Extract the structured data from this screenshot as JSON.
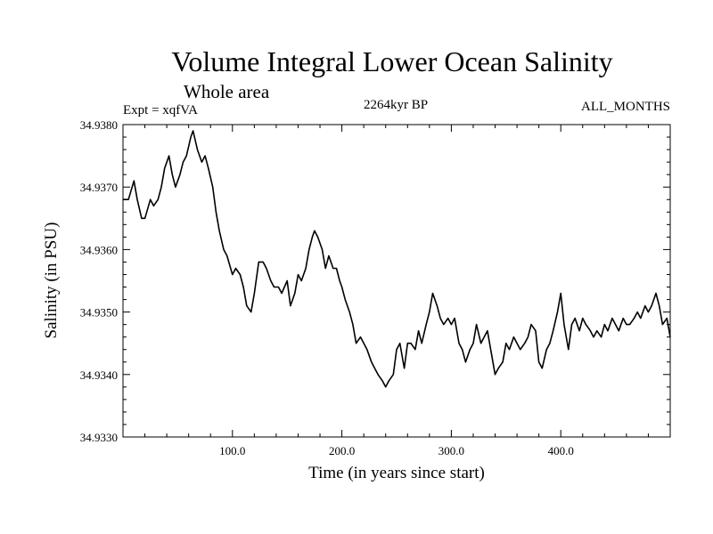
{
  "chart_data": {
    "type": "line",
    "title": "Volume Integral Lower Ocean Salinity",
    "subtitle": "Whole area",
    "experiment": "Expt = xqfVA",
    "period": "2264kyr BP",
    "months": "ALL_MONTHS",
    "xlabel": "Time (in years since start)",
    "ylabel": "Salinity (in PSU)",
    "xlim": [
      0,
      500
    ],
    "ylim": [
      34.933,
      34.938
    ],
    "x_ticks": [
      100,
      200,
      300,
      400
    ],
    "x_tick_labels": [
      "100.0",
      "200.0",
      "300.0",
      "400.0"
    ],
    "y_ticks": [
      34.933,
      34.934,
      34.935,
      34.936,
      34.937,
      34.938
    ],
    "y_tick_labels": [
      "34.9330",
      "34.9340",
      "34.9350",
      "34.9360",
      "34.9370",
      "34.9380"
    ],
    "series": [
      {
        "name": "salinity",
        "x": [
          0,
          5,
          10,
          13,
          17,
          20,
          25,
          28,
          32,
          35,
          38,
          42,
          45,
          48,
          52,
          55,
          58,
          62,
          64,
          68,
          72,
          75,
          78,
          82,
          85,
          88,
          92,
          95,
          100,
          103,
          107,
          110,
          113,
          117,
          120,
          124,
          128,
          131,
          135,
          138,
          142,
          145,
          150,
          153,
          157,
          160,
          163,
          167,
          170,
          173,
          175,
          178,
          182,
          185,
          188,
          192,
          195,
          198,
          200,
          203,
          207,
          210,
          213,
          217,
          220,
          223,
          227,
          230,
          233,
          237,
          240,
          243,
          247,
          250,
          253,
          257,
          260,
          263,
          267,
          270,
          273,
          277,
          280,
          283,
          287,
          290,
          293,
          297,
          300,
          303,
          307,
          310,
          313,
          317,
          320,
          323,
          327,
          330,
          333,
          337,
          340,
          343,
          347,
          350,
          353,
          357,
          360,
          363,
          367,
          370,
          373,
          377,
          380,
          383,
          387,
          390,
          393,
          397,
          400,
          403,
          407,
          410,
          413,
          417,
          420,
          423,
          427,
          430,
          433,
          437,
          440,
          443,
          447,
          450,
          453,
          457,
          460,
          463,
          467,
          470,
          473,
          477,
          480,
          483,
          487,
          490,
          493,
          497,
          500
        ],
        "values": [
          34.9368,
          34.9368,
          34.9371,
          34.9368,
          34.9365,
          34.9365,
          34.9368,
          34.9367,
          34.9368,
          34.937,
          34.9373,
          34.9375,
          34.9372,
          34.937,
          34.9372,
          34.9374,
          34.9375,
          34.9378,
          34.9379,
          34.9376,
          34.9374,
          34.9375,
          34.9373,
          34.937,
          34.9366,
          34.9363,
          34.936,
          34.9359,
          34.9356,
          34.9357,
          34.9356,
          34.9354,
          34.9351,
          34.935,
          34.9353,
          34.9358,
          34.9358,
          34.9357,
          34.9355,
          34.9354,
          34.9354,
          34.9353,
          34.9355,
          34.9351,
          34.9353,
          34.9356,
          34.9355,
          34.9357,
          34.936,
          34.9362,
          34.9363,
          34.9362,
          34.936,
          34.9357,
          34.9359,
          34.9357,
          34.9357,
          34.9355,
          34.9354,
          34.9352,
          34.935,
          34.9348,
          34.9345,
          34.9346,
          34.9345,
          34.9344,
          34.9342,
          34.9341,
          34.934,
          34.9339,
          34.9338,
          34.9339,
          34.934,
          34.9344,
          34.9345,
          34.9341,
          34.9345,
          34.9345,
          34.9344,
          34.9347,
          34.9345,
          34.9348,
          34.935,
          34.9353,
          34.9351,
          34.9349,
          34.9348,
          34.9349,
          34.9348,
          34.9349,
          34.9345,
          34.9344,
          34.9342,
          34.9344,
          34.9345,
          34.9348,
          34.9345,
          34.9346,
          34.9347,
          34.9343,
          34.934,
          34.9341,
          34.9342,
          34.9345,
          34.9344,
          34.9346,
          34.9345,
          34.9344,
          34.9345,
          34.9346,
          34.9348,
          34.9347,
          34.9342,
          34.9341,
          34.9344,
          34.9345,
          34.9347,
          34.935,
          34.9353,
          34.9348,
          34.9344,
          34.9348,
          34.9349,
          34.9347,
          34.9349,
          34.9348,
          34.9347,
          34.9346,
          34.9347,
          34.9346,
          34.9348,
          34.9347,
          34.9349,
          34.9348,
          34.9347,
          34.9349,
          34.9348,
          34.9348,
          34.9349,
          34.935,
          34.9349,
          34.9351,
          34.935,
          34.9351,
          34.9353,
          34.9351,
          34.9348,
          34.9349,
          34.9346
        ]
      }
    ]
  }
}
